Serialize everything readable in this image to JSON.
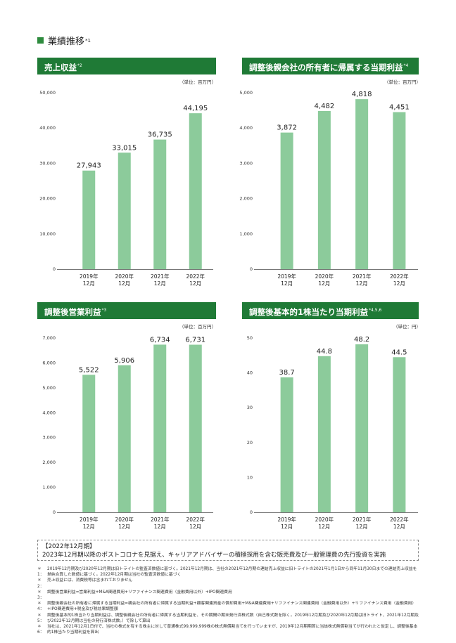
{
  "section": {
    "title": "業績推移",
    "mark": "*1"
  },
  "panels": [
    {
      "title": "売上収益",
      "mark": "*2",
      "unit": "（単位：百万円）",
      "chart_data": {
        "type": "bar",
        "categories": [
          "2019年|12月",
          "2020年|12月",
          "2021年|12月",
          "2022年|12月"
        ],
        "values": [
          27943,
          33015,
          36735,
          44195
        ],
        "labels": [
          "27,943",
          "33,015",
          "36,735",
          "44,195"
        ],
        "yticks": [
          "0",
          "10,000",
          "20,000",
          "30,000",
          "40,000",
          "50,000"
        ],
        "ylim": [
          0,
          50000
        ]
      }
    },
    {
      "title": "調整後親会社の所有者に帰属する当期利益",
      "mark": "*4",
      "unit": "（単位：百万円）",
      "chart_data": {
        "type": "bar",
        "categories": [
          "2019年|12月",
          "2020年|12月",
          "2021年|12月",
          "2022年|12月"
        ],
        "values": [
          3872,
          4482,
          4818,
          4451
        ],
        "labels": [
          "3,872",
          "4,482",
          "4,818",
          "4,451"
        ],
        "yticks": [
          "0",
          "1,000",
          "2,000",
          "3,000",
          "4,000",
          "5,000"
        ],
        "ylim": [
          0,
          5000
        ]
      }
    },
    {
      "title": "調整後営業利益",
      "mark": "*3",
      "unit": "（単位：百万円）",
      "chart_data": {
        "type": "bar",
        "categories": [
          "2019年|12月",
          "2020年|12月",
          "2021年|12月",
          "2022年|12月"
        ],
        "values": [
          5522,
          5906,
          6734,
          6731
        ],
        "labels": [
          "5,522",
          "5,906",
          "6,734",
          "6,731"
        ],
        "yticks": [
          "0",
          "1,000",
          "2,000",
          "3,000",
          "4,000",
          "5,000",
          "6,000",
          "7,000"
        ],
        "ylim": [
          0,
          7000
        ]
      }
    },
    {
      "title": "調整後基本的1株当たり当期利益",
      "mark": "*4,5,6",
      "unit": "（単位：円）",
      "chart_data": {
        "type": "bar",
        "categories": [
          "2019年|12月",
          "2020年|12月",
          "2021年|12月",
          "2022年|12月"
        ],
        "values": [
          38.7,
          44.8,
          48.2,
          44.5
        ],
        "labels": [
          "38.7",
          "44.8",
          "48.2",
          "44.5"
        ],
        "yticks": [
          "0",
          "10",
          "20",
          "30",
          "40",
          "50"
        ],
        "ylim": [
          0,
          50
        ]
      }
    }
  ],
  "colors": {
    "bar": "#8ccb9b",
    "banner": "#1f7a36",
    "axis": "#777777"
  },
  "note": {
    "heading": "【2022年12月期】",
    "body": "2023年12月期以降のポストコロナを見据え、キャリアアドバイザーの積極採用を含む販売費及び一般管理費の先行投資を実施"
  },
  "footnotes": [
    {
      "mark": "＊1：",
      "text": "2019年12月期及び2020年12月期は旧トライトの監査済数値に基づく。2021年12月期は、当社の2021年12月期の連結売上収益に旧トライトの2021年1月1日から同年11月30日までの連結売上収益を単純合算した数値に基づく。2022年12月期は当社の監査済数値に基づく"
    },
    {
      "mark": "＊2：",
      "text": "売上収益には、消費税等は含まれておりません"
    },
    {
      "mark": "＊3：",
      "text": "調整後営業利益=営業利益+M&A関連費用+リファイナンス関連費用（金融費用以外）+IPO関連費用"
    },
    {
      "mark": "＊4：",
      "text": "調整後親会社の所有者に帰属する当期利益=親会社の所有者に帰属する当期利益+顧客関連資産の償却費用+M&A関連費用+リファイナンス関連費用（金融費用以外）+リファイナンス費用（金融費用）+IPO関連費用+税金及び税効果調整額"
    },
    {
      "mark": "＊5：",
      "text": "調整後基本的1株当たり当期利益は、調整後親会社の所有者に帰属する当期利益を、その期間の期末発行済株式数（自己株式数を除く。2019年12月期及び2020年12月期は旧トライト、2021年12月期及び2022年12月期は当社の発行済株式数。）で除して算出"
    },
    {
      "mark": "＊6：",
      "text": "当社は、2021年12月1日付で、当社の株式を有する株主に対して普通株式99,999,999株の株式無償割当てを行っていますが、2019年12月期期首に当該株式無償割当てが行われたと仮定し、調整後基本的1株当たり当期利益を算出"
    }
  ]
}
